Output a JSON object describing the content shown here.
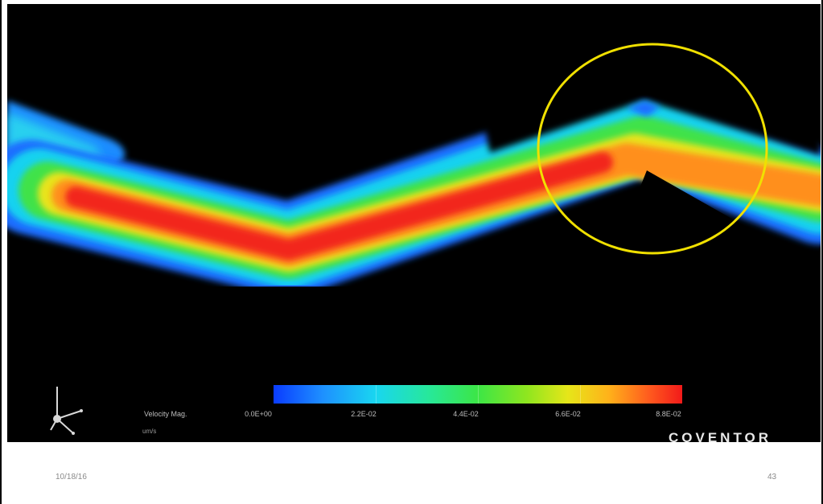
{
  "figure": {
    "legend_label": "Velocity Mag.",
    "unit": "um/s",
    "scale_values": [
      "0.0E+00",
      "2.2E-02",
      "4.4E-02",
      "6.6E-02",
      "8.8E-02"
    ],
    "brand": "COVENTOR",
    "colors": {
      "background": "#000000",
      "highlight_circle": "#f0e000",
      "scale_low": "#0a3cff",
      "scale_high": "#f21a1a"
    }
  },
  "footer": {
    "date": "10/18/16",
    "page_number": "43"
  }
}
